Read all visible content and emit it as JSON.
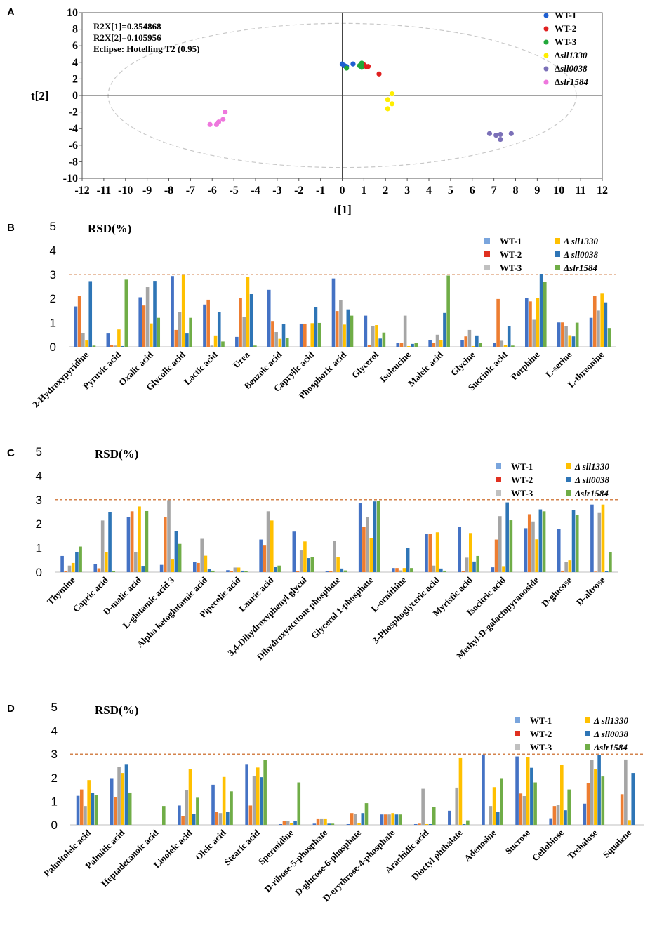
{
  "chart_data": [
    {
      "panel": "A",
      "type": "scatter",
      "xlabel": "t[1]",
      "ylabel": "t[2]",
      "xlim": [
        -12,
        12
      ],
      "ylim": [
        -10,
        10
      ],
      "xticks": [
        -12,
        -11,
        -10,
        -9,
        -8,
        -7,
        -6,
        -5,
        -4,
        -3,
        -2,
        -1,
        0,
        1,
        2,
        3,
        4,
        5,
        6,
        7,
        8,
        9,
        10,
        11,
        12
      ],
      "yticks": [
        10,
        8,
        6,
        4,
        2,
        0,
        -2,
        -4,
        -6,
        -8,
        -10
      ],
      "annotations": [
        "R2X[1]=0.354868",
        "R2X[2]=0.105956",
        "Eclipse: Hotelling T2 (0.95)"
      ],
      "ellipse": {
        "cx": 0,
        "cy": 0,
        "rx": 10.8,
        "ry": 8.7
      },
      "series": [
        {
          "name": "WT-1",
          "color": "#1f5fd1",
          "points": [
            [
              0.0,
              3.8
            ],
            [
              0.1,
              3.6
            ],
            [
              0.2,
              3.5
            ],
            [
              0.5,
              3.8
            ]
          ]
        },
        {
          "name": "WT-2",
          "color": "#e02020",
          "points": [
            [
              1.0,
              3.7
            ],
            [
              1.1,
              3.5
            ],
            [
              1.2,
              3.5
            ],
            [
              1.7,
              2.6
            ]
          ]
        },
        {
          "name": "WT-3",
          "color": "#21a83a",
          "points": [
            [
              0.2,
              3.3
            ],
            [
              0.8,
              3.6
            ],
            [
              0.9,
              3.9
            ],
            [
              0.9,
              3.4
            ]
          ]
        },
        {
          "name": "Δsll1330",
          "color": "#ffee00",
          "points": [
            [
              2.3,
              0.2
            ],
            [
              2.1,
              -0.5
            ],
            [
              2.3,
              -1.0
            ],
            [
              2.1,
              -1.6
            ]
          ]
        },
        {
          "name": "Δsll0038",
          "color": "#7b70b8",
          "points": [
            [
              6.8,
              -4.6
            ],
            [
              7.1,
              -4.8
            ],
            [
              7.3,
              -4.7
            ],
            [
              7.3,
              -5.3
            ],
            [
              7.8,
              -4.6
            ]
          ]
        },
        {
          "name": "Δslr1584",
          "color": "#ee77dd",
          "points": [
            [
              -6.1,
              -3.5
            ],
            [
              -5.8,
              -3.5
            ],
            [
              -5.7,
              -3.2
            ],
            [
              -5.5,
              -2.9
            ],
            [
              -5.4,
              -2.0
            ]
          ]
        }
      ]
    },
    {
      "panel": "B",
      "type": "bar",
      "title": "RSD(%)",
      "ylim": [
        0,
        5
      ],
      "yticks": [
        5,
        4,
        3,
        2,
        1,
        0
      ],
      "threshold": 3,
      "categories": [
        "2-Hydroxypyridine",
        "Pyruvic acid",
        "Oxalic acid",
        "Glycolic acid",
        "Lactic acid",
        "Urea",
        "Benzoic acid",
        "Caprylic acid",
        "Phosphoric acid",
        "Glycerol",
        "Isoleucine",
        "Maleic acid",
        "Glycine",
        "Succinic acid",
        "Porphine",
        "L-serine",
        "L-threonine"
      ],
      "series": [
        {
          "name": "WT-1",
          "values": [
            1.67,
            0.55,
            2.05,
            2.93,
            1.75,
            0.41,
            2.36,
            0.96,
            2.83,
            1.29,
            0.17,
            0.27,
            0.28,
            0.15,
            2.02,
            1.01,
            1.2
          ]
        },
        {
          "name": "WT-2",
          "values": [
            2.1,
            0.08,
            1.71,
            0.7,
            1.95,
            2.02,
            1.07,
            0.96,
            1.48,
            0.08,
            0.16,
            0.15,
            0.43,
            1.98,
            1.88,
            1.01,
            2.1
          ]
        },
        {
          "name": "WT-3",
          "values": [
            0.58,
            0.05,
            2.47,
            1.43,
            0.05,
            1.25,
            0.61,
            0.03,
            1.94,
            0.85,
            1.29,
            0.5,
            0.7,
            0.25,
            1.12,
            0.86,
            1.5
          ]
        },
        {
          "name": "Δsll1330",
          "values": [
            0.26,
            0.72,
            0.97,
            2.97,
            0.47,
            2.88,
            0.33,
            0.98,
            0.92,
            0.9,
            0.03,
            0.27,
            0.03,
            0.06,
            2.02,
            0.48,
            2.2
          ]
        },
        {
          "name": "Δsll0038",
          "values": [
            2.72,
            0.03,
            2.73,
            0.55,
            1.45,
            2.18,
            0.93,
            1.63,
            1.55,
            0.34,
            0.12,
            1.4,
            0.47,
            0.85,
            3.0,
            0.43,
            1.84
          ]
        },
        {
          "name": "Δslr1584",
          "values": [
            0.05,
            2.78,
            1.2,
            1.2,
            0.22,
            0.05,
            0.36,
            0.99,
            1.29,
            0.59,
            0.17,
            2.95,
            0.17,
            0.05,
            2.68,
            1.0,
            0.78
          ]
        }
      ]
    },
    {
      "panel": "C",
      "type": "bar",
      "title": "RSD(%)",
      "ylim": [
        0,
        5
      ],
      "yticks": [
        5,
        4,
        3,
        2,
        1,
        0
      ],
      "threshold": 3,
      "categories": [
        "Thymine",
        "Capric acid",
        "D-malic acid",
        "L-glutamic acid 3",
        "Alpha ketoglutamic acid",
        "Pipecolic acid",
        "Lauric acid",
        "3,4-Dihydroxyphenyl glycol",
        "Dihydroxyacetone phosphate",
        "Glycerol 1-phosphate",
        "L-ornithine",
        "3-Phosphoglyceric acid",
        "Myristic acid",
        "Isocitric acid",
        "Methyl-D-galactopyranoside",
        "D-glucose",
        "D-altrose"
      ],
      "series": [
        {
          "name": "WT-1",
          "values": [
            0.67,
            0.32,
            2.28,
            0.3,
            0.42,
            0.08,
            1.35,
            1.68,
            0.03,
            2.87,
            0.17,
            1.57,
            1.88,
            0.2,
            1.82,
            1.78,
            2.8
          ]
        },
        {
          "name": "WT-2",
          "values": [
            0.03,
            0.16,
            2.52,
            2.28,
            0.38,
            0.03,
            1.1,
            0.05,
            0.03,
            1.88,
            0.17,
            1.57,
            0.03,
            1.35,
            2.4,
            0.06,
            0.02
          ]
        },
        {
          "name": "WT-3",
          "values": [
            0.27,
            2.14,
            0.83,
            2.98,
            1.38,
            0.19,
            2.52,
            0.9,
            1.3,
            2.28,
            0.07,
            0.27,
            0.6,
            2.32,
            2.1,
            0.42,
            2.45
          ]
        },
        {
          "name": "Δsll1330",
          "values": [
            0.38,
            0.83,
            2.72,
            0.55,
            0.68,
            0.19,
            2.14,
            1.27,
            0.61,
            1.42,
            0.17,
            1.65,
            1.62,
            0.25,
            1.36,
            0.49,
            2.8
          ]
        },
        {
          "name": "Δsll0038",
          "values": [
            0.84,
            2.48,
            0.26,
            1.7,
            0.12,
            0.06,
            0.21,
            0.58,
            0.15,
            2.93,
            1.0,
            0.15,
            0.44,
            2.89,
            2.6,
            2.57,
            0.03
          ]
        },
        {
          "name": "Δslr1584",
          "values": [
            1.06,
            0.03,
            2.53,
            1.17,
            0.06,
            0.04,
            0.27,
            0.63,
            0.07,
            2.95,
            0.17,
            0.06,
            0.67,
            2.15,
            2.52,
            2.38,
            0.83
          ]
        }
      ]
    },
    {
      "panel": "D",
      "type": "bar",
      "title": "RSD(%)",
      "ylim": [
        0,
        5
      ],
      "yticks": [
        5,
        4,
        3,
        2,
        1,
        0
      ],
      "threshold": 3,
      "categories": [
        "Palmitoleic acid",
        "Palmitic acid",
        "Heptadecanoic acid",
        "Linoleic acid",
        "Oleic acid",
        "Stearic acid",
        "Spermidine",
        "D-ribose-5-phosphate",
        "D-glucose-6-phosphate",
        "D-erythrose-4-phosphate",
        "Arachidic acid",
        "Dioctyl phthalate",
        "Adenosine",
        "Sucrose",
        "Cellobiose",
        "Trehalose",
        "Squalene"
      ],
      "series": [
        {
          "name": "WT-1",
          "values": [
            1.23,
            1.98,
            0.0,
            0.82,
            1.7,
            2.55,
            0.03,
            0.05,
            0.03,
            0.44,
            0.03,
            0.6,
            2.98,
            2.9,
            0.28,
            0.9,
            0.0
          ]
        },
        {
          "name": "WT-2",
          "values": [
            1.5,
            1.18,
            0.0,
            0.37,
            0.56,
            0.82,
            0.15,
            0.27,
            0.5,
            0.44,
            0.05,
            0.0,
            0.0,
            1.33,
            0.8,
            1.78,
            1.3
          ]
        },
        {
          "name": "WT-3",
          "values": [
            0.8,
            2.45,
            0.0,
            1.46,
            0.5,
            2.07,
            0.15,
            0.27,
            0.45,
            0.44,
            1.53,
            1.58,
            0.8,
            1.22,
            0.86,
            2.75,
            2.77
          ]
        },
        {
          "name": "Δsll1330",
          "values": [
            1.9,
            2.2,
            0.0,
            2.37,
            2.03,
            2.43,
            0.06,
            0.27,
            0.06,
            0.5,
            0.03,
            2.83,
            1.6,
            2.87,
            2.53,
            2.38,
            0.2
          ]
        },
        {
          "name": "Δsll0038",
          "values": [
            1.35,
            2.55,
            0.0,
            0.45,
            0.56,
            2.02,
            0.15,
            0.05,
            0.5,
            0.44,
            0.03,
            0.03,
            0.55,
            2.42,
            0.62,
            2.97,
            2.2
          ]
        },
        {
          "name": "Δslr1584",
          "values": [
            1.27,
            1.37,
            0.8,
            1.15,
            1.42,
            2.75,
            1.8,
            0.05,
            0.92,
            0.44,
            0.75,
            0.19,
            1.98,
            1.8,
            1.5,
            2.05,
            0.0
          ]
        }
      ]
    }
  ],
  "legend_bar": [
    {
      "name": "WT-1",
      "prefix": "",
      "label": "WT-1",
      "italic": false
    },
    {
      "name": "WT-2",
      "prefix": "",
      "label": "WT-2",
      "italic": false
    },
    {
      "name": "WT-3",
      "prefix": "",
      "label": "WT-3",
      "italic": false
    },
    {
      "name": "Δsll1330",
      "prefix": "Δ ",
      "label": "sll1330",
      "italic": true
    },
    {
      "name": "Δsll0038",
      "prefix": "Δ ",
      "label": "sll0038",
      "italic": true
    },
    {
      "name": "Δslr1584",
      "prefix": "Δ",
      "label": "slr1584",
      "italic": true
    }
  ],
  "colors": {
    "scatter": [
      "#1f5fd1",
      "#e02020",
      "#21a83a",
      "#ffee00",
      "#7b70b8",
      "#ee77dd"
    ],
    "bar": [
      "#4472c4",
      "#ed7d31",
      "#a5a5a5",
      "#ffc000",
      "#2e75b6",
      "#70ad47"
    ],
    "legend_bar": [
      "#7aa5dd",
      "#e03020",
      "#c0c0c0",
      "#ffc000",
      "#2e75b6",
      "#70ad47"
    ],
    "threshold": "#c55a11"
  }
}
